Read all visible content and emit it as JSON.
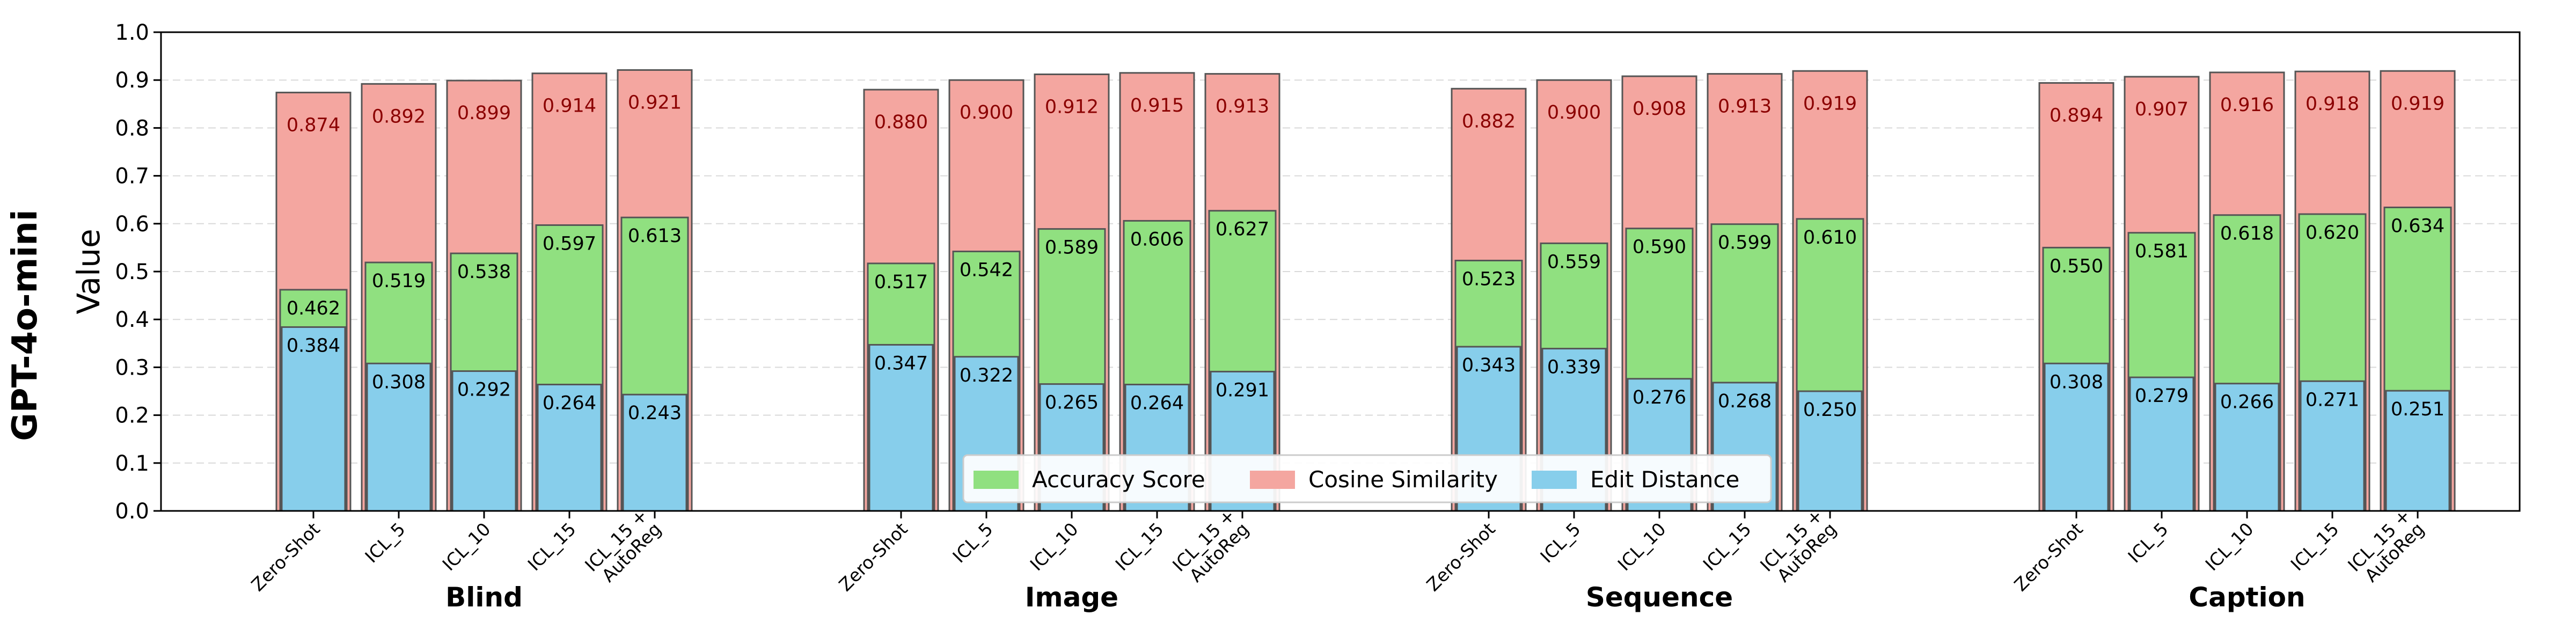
{
  "chart_data": {
    "type": "bar",
    "title": "",
    "model_label": "GPT-4o-mini",
    "ylabel": "Value",
    "ylim": [
      0,
      1.0
    ],
    "yticks": [
      0.0,
      0.1,
      0.2,
      0.3,
      0.4,
      0.5,
      0.6,
      0.7,
      0.8,
      0.9,
      1.0
    ],
    "ytick_labels": [
      "0.0",
      "0.1",
      "0.2",
      "0.3",
      "0.4",
      "0.5",
      "0.6",
      "0.7",
      "0.8",
      "0.9",
      "1.0"
    ],
    "grid": "horizontal dashed",
    "legend_position": "bottom-center",
    "groups": [
      "Blind",
      "Image",
      "Sequence",
      "Caption"
    ],
    "categories": [
      "Zero-Shot",
      "ICL_5",
      "ICL_10",
      "ICL_15",
      "ICL_15 +\nAutoReg"
    ],
    "series": [
      {
        "name": "Cosine Similarity",
        "color": "#f4a6a0",
        "label_color": "#8b0000",
        "values": [
          [
            0.874,
            0.892,
            0.899,
            0.914,
            0.921
          ],
          [
            0.88,
            0.9,
            0.912,
            0.915,
            0.913
          ],
          [
            0.882,
            0.9,
            0.908,
            0.913,
            0.919
          ],
          [
            0.894,
            0.907,
            0.916,
            0.918,
            0.919
          ]
        ],
        "labels": [
          [
            "0.874",
            "0.892",
            "0.899",
            "0.914",
            "0.921"
          ],
          [
            "0.880",
            "0.900",
            "0.912",
            "0.915",
            "0.913"
          ],
          [
            "0.882",
            "0.900",
            "0.908",
            "0.913",
            "0.919"
          ],
          [
            "0.894",
            "0.907",
            "0.916",
            "0.918",
            "0.919"
          ]
        ]
      },
      {
        "name": "Accuracy Score",
        "color": "#90e080",
        "label_color": "#000000",
        "values": [
          [
            0.462,
            0.519,
            0.538,
            0.597,
            0.613
          ],
          [
            0.517,
            0.542,
            0.589,
            0.606,
            0.627
          ],
          [
            0.523,
            0.559,
            0.59,
            0.599,
            0.61
          ],
          [
            0.55,
            0.581,
            0.618,
            0.62,
            0.634
          ]
        ],
        "labels": [
          [
            "0.462",
            "0.519",
            "0.538",
            "0.597",
            "0.613"
          ],
          [
            "0.517",
            "0.542",
            "0.589",
            "0.606",
            "0.627"
          ],
          [
            "0.523",
            "0.559",
            "0.590",
            "0.599",
            "0.610"
          ],
          [
            "0.550",
            "0.581",
            "0.618",
            "0.620",
            "0.634"
          ]
        ]
      },
      {
        "name": "Edit Distance",
        "color": "#87ceeb",
        "label_color": "#000000",
        "values": [
          [
            0.384,
            0.308,
            0.292,
            0.264,
            0.243
          ],
          [
            0.347,
            0.322,
            0.265,
            0.264,
            0.291
          ],
          [
            0.343,
            0.339,
            0.276,
            0.268,
            0.25
          ],
          [
            0.308,
            0.279,
            0.266,
            0.271,
            0.251
          ]
        ],
        "labels": [
          [
            "0.384",
            "0.308",
            "0.292",
            "0.264",
            "0.243"
          ],
          [
            "0.347",
            "0.322",
            "0.265",
            "0.264",
            "0.291"
          ],
          [
            "0.343",
            "0.339",
            "0.276",
            "0.268",
            "0.250"
          ],
          [
            "0.308",
            "0.279",
            "0.266",
            "0.271",
            "0.251"
          ]
        ]
      }
    ],
    "legend": [
      {
        "name": "Accuracy Score",
        "color": "#90e080"
      },
      {
        "name": "Cosine Similarity",
        "color": "#f4a6a0"
      },
      {
        "name": "Edit Distance",
        "color": "#87ceeb"
      }
    ]
  }
}
